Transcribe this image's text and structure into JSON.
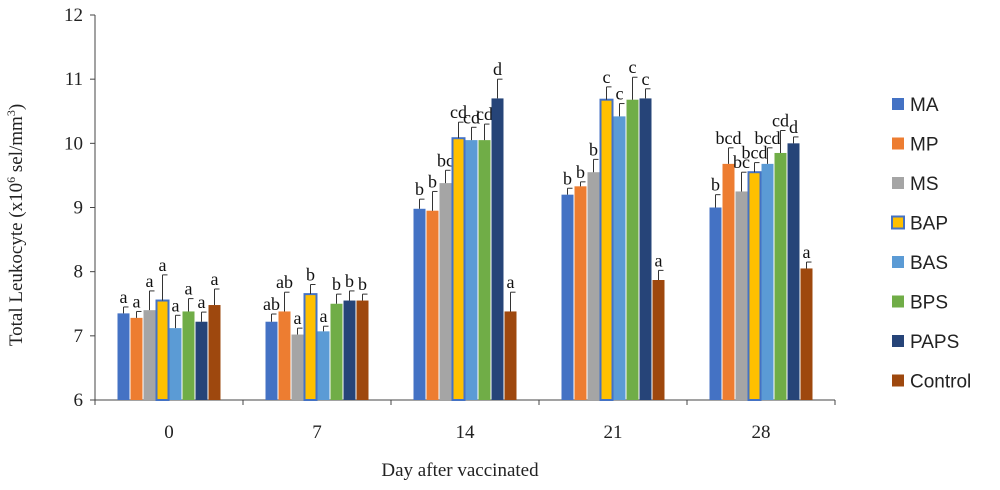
{
  "chart_data": {
    "type": "bar",
    "title": "",
    "xlabel": "Day after vaccinated",
    "ylabel_main": "Total Leukocyte (x10",
    "ylabel_sup1": "6",
    "ylabel_mid": " sel/mm",
    "ylabel_sup2": "3",
    "ylabel_end": ")",
    "ylim": [
      6,
      12
    ],
    "yticks": [
      6,
      7,
      8,
      9,
      10,
      11,
      12
    ],
    "grid": false,
    "legend_position": "right",
    "categories": [
      "0",
      "7",
      "14",
      "21",
      "28"
    ],
    "series": [
      {
        "name": "MA",
        "color": "#4472C4",
        "outline": "",
        "values": [
          7.35,
          7.22,
          8.98,
          9.2,
          9.0
        ],
        "errors": [
          0.1,
          0.12,
          0.15,
          0.1,
          0.2
        ],
        "labels": [
          "a",
          "ab",
          "b",
          "b",
          "b"
        ]
      },
      {
        "name": "MP",
        "color": "#ED7D31",
        "outline": "",
        "values": [
          7.28,
          7.38,
          8.95,
          9.33,
          9.68
        ],
        "errors": [
          0.1,
          0.3,
          0.3,
          0.07,
          0.25
        ],
        "labels": [
          "a",
          "ab",
          "b",
          "b",
          "bcd"
        ]
      },
      {
        "name": "MS",
        "color": "#A5A5A5",
        "outline": "",
        "values": [
          7.4,
          7.02,
          9.38,
          9.55,
          9.25
        ],
        "errors": [
          0.3,
          0.1,
          0.2,
          0.2,
          0.3
        ],
        "labels": [
          "a",
          "a",
          "bc",
          "b",
          "bc"
        ]
      },
      {
        "name": "BAP",
        "color": "#FFC000",
        "outline": "#4472C4",
        "values": [
          7.55,
          7.65,
          10.08,
          10.68,
          9.55
        ],
        "errors": [
          0.4,
          0.15,
          0.25,
          0.2,
          0.15
        ],
        "labels": [
          "a",
          "b",
          "cd",
          "c",
          "bcd"
        ]
      },
      {
        "name": "BAS",
        "color": "#5B9BD5",
        "outline": "",
        "values": [
          7.12,
          7.07,
          10.05,
          10.42,
          9.68
        ],
        "errors": [
          0.2,
          0.08,
          0.2,
          0.2,
          0.25
        ],
        "labels": [
          "a",
          "a",
          "cd",
          "c",
          "bcd"
        ]
      },
      {
        "name": "BPS",
        "color": "#70AD47",
        "outline": "",
        "values": [
          7.38,
          7.5,
          10.05,
          10.68,
          9.85
        ],
        "errors": [
          0.2,
          0.15,
          0.25,
          0.35,
          0.35
        ],
        "labels": [
          "a",
          "b",
          "cd",
          "c",
          "cd"
        ]
      },
      {
        "name": "PAPS",
        "color": "#264478",
        "outline": "",
        "values": [
          7.22,
          7.55,
          10.7,
          10.7,
          10.0
        ],
        "errors": [
          0.15,
          0.15,
          0.3,
          0.15,
          0.1
        ],
        "labels": [
          "a",
          "b",
          "d",
          "c",
          "d"
        ]
      },
      {
        "name": "Control",
        "color": "#9E480E",
        "outline": "",
        "values": [
          7.48,
          7.55,
          7.38,
          7.87,
          8.05
        ],
        "errors": [
          0.25,
          0.1,
          0.3,
          0.15,
          0.1
        ],
        "labels": [
          "a",
          "b",
          "a",
          "a",
          "a"
        ]
      }
    ]
  }
}
